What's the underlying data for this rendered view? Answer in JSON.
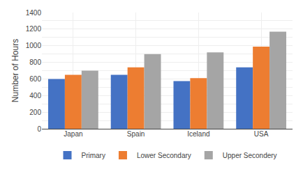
{
  "chart_data": {
    "type": "bar",
    "ylabel": "Number of Hours",
    "categories": [
      "Japan",
      "Spain",
      "Iceland",
      "USA"
    ],
    "series": [
      {
        "name": "Primary",
        "color": "#4472C4",
        "values": [
          600,
          650,
          575,
          740
        ]
      },
      {
        "name": "Lower Secondary",
        "color": "#ED7D31",
        "values": [
          650,
          740,
          610,
          990
        ]
      },
      {
        "name": "Upper Secondery",
        "color": "#A5A5A5",
        "values": [
          700,
          900,
          920,
          1170
        ]
      }
    ],
    "ylim": [
      0,
      1400
    ],
    "yticks": [
      0,
      {
        "value": 100,
        "label": ""
      },
      200,
      {
        "value": 300,
        "label": ""
      },
      400,
      {
        "value": 500,
        "label": ""
      },
      600,
      {
        "value": 700,
        "label": ""
      },
      800,
      {
        "value": 900,
        "label": ""
      },
      1000,
      {
        "value": 1100,
        "label": ""
      },
      1200,
      {
        "value": 1300,
        "label": ""
      },
      1400
    ],
    "grid": true,
    "legend": "bottom"
  }
}
